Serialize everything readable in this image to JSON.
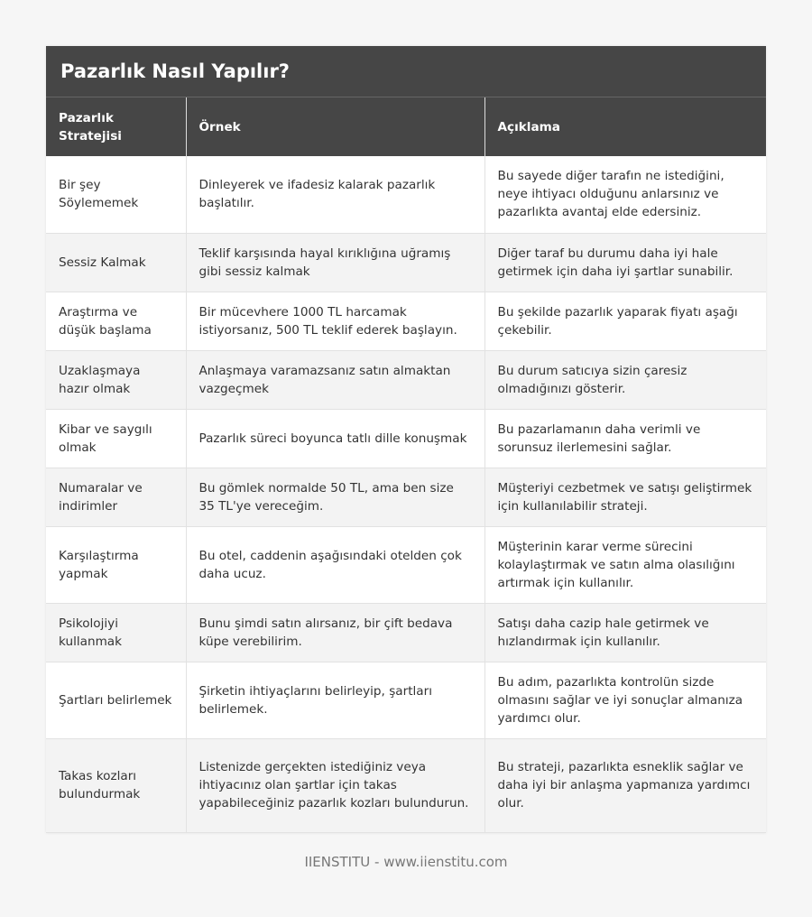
{
  "title": "Pazarlık Nasıl Yapılır?",
  "columns": [
    "Pazarlık Stratejisi",
    "Örnek",
    "Açıklama"
  ],
  "rows": [
    [
      "Bir şey Söylememek",
      "Dinleyerek ve ifadesiz kalarak pazarlık başlatılır.",
      "Bu sayede diğer tarafın ne istediğini, neye ihtiyacı olduğunu anlarsınız ve pazarlıkta avantaj elde edersiniz."
    ],
    [
      "Sessiz Kalmak",
      "Teklif karşısında hayal kırıklığına uğramış gibi sessiz kalmak",
      "Diğer taraf bu durumu daha iyi hale getirmek için daha iyi şartlar sunabilir."
    ],
    [
      "Araştırma ve düşük başlama",
      "Bir mücevhere 1000 TL harcamak istiyorsanız, 500 TL teklif ederek başlayın.",
      "Bu şekilde pazarlık yaparak fiyatı aşağı çekebilir."
    ],
    [
      "Uzaklaşmaya hazır olmak",
      "Anlaşmaya varamazsanız satın almaktan vazgeçmek",
      "Bu durum satıcıya sizin çaresiz olmadığınızı gösterir."
    ],
    [
      "Kibar ve saygılı olmak",
      "Pazarlık süreci boyunca tatlı dille konuşmak",
      "Bu pazarlamanın daha verimli ve sorunsuz ilerlemesini sağlar."
    ],
    [
      "Numaralar ve indirimler",
      "Bu gömlek normalde 50 TL, ama ben size 35 TL'ye vereceğim.",
      "Müşteriyi cezbetmek ve satışı geliştirmek için kullanılabilir strateji."
    ],
    [
      "Karşılaştırma yapmak",
      "Bu otel, caddenin aşağısındaki otelden çok daha ucuz.",
      "Müşterinin karar verme sürecini kolaylaştırmak ve satın alma olasılığını artırmak için kullanılır."
    ],
    [
      "Psikolojiyi kullanmak",
      "Bunu şimdi satın alırsanız, bir çift bedava küpe verebilirim.",
      "Satışı daha cazip hale getirmek ve hızlandırmak için kullanılır."
    ],
    [
      "Şartları belirlemek",
      "Şirketin ihtiyaçlarını belirleyip, şartları belirlemek.",
      "Bu adım, pazarlıkta kontrolün sizde olmasını sağlar ve iyi sonuçlar almanıza yardımcı olur."
    ],
    [
      "Takas kozları bulundurmak",
      "Listenizde gerçekten istediğiniz veya ihtiyacınız olan şartlar için takas yapabileceğiniz pazarlık kozları bulundurun.",
      "Bu strateji, pazarlıkta esneklik sağlar ve daha iyi bir anlaşma yapmanıza yardımcı olur."
    ]
  ],
  "footer": "IIENSTITU - www.iienstitu.com"
}
